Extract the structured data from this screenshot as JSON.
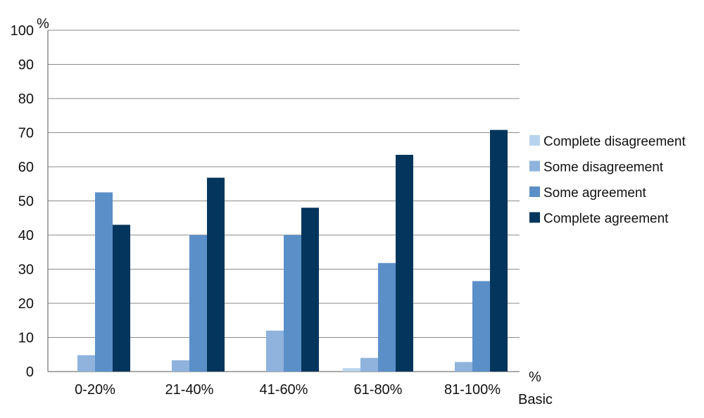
{
  "chart_data": {
    "type": "bar",
    "title": "",
    "ylabel": "%",
    "xlabel_lines": [
      "%",
      "Basic"
    ],
    "ylim": [
      0,
      100
    ],
    "yticks": [
      0,
      10,
      20,
      30,
      40,
      50,
      60,
      70,
      80,
      90,
      100
    ],
    "grid": true,
    "legend_position": "right",
    "categories": [
      "0-20%",
      "21-40%",
      "41-60%",
      "61-80%",
      "81-100%"
    ],
    "series": [
      {
        "name": "Complete disagreement",
        "color": "#b9d4ee",
        "values": [
          0,
          0,
          0,
          1,
          0
        ]
      },
      {
        "name": "Some disagreement",
        "color": "#8fb3dd",
        "values": [
          4.8,
          3.3,
          12,
          4,
          2.8
        ]
      },
      {
        "name": "Some agreement",
        "color": "#5b8fc8",
        "values": [
          52.5,
          40,
          40,
          31.8,
          26.5
        ]
      },
      {
        "name": "Complete agreement",
        "color": "#04355c",
        "values": [
          43,
          56.8,
          48,
          63.5,
          70.8
        ]
      }
    ]
  }
}
